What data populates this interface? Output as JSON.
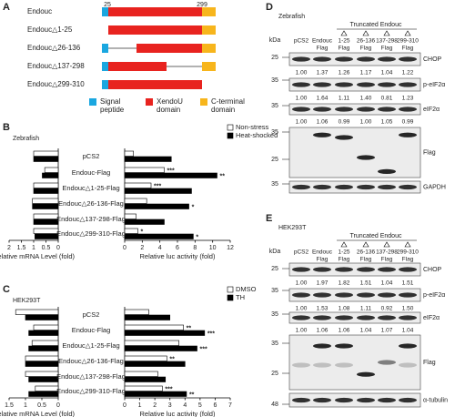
{
  "panel_a": {
    "label": "A",
    "positions": [
      "25",
      "299"
    ],
    "constructs": [
      "Endouc",
      "Endouc△1-25",
      "Endouc△26-136",
      "Endouc△137-298",
      "Endouc△299-310"
    ],
    "legend": [
      {
        "lines": [
          "Signal",
          "peptide"
        ],
        "color": "#1aa7e0"
      },
      {
        "lines": [
          "XendoU",
          "domain"
        ],
        "color": "#e8231f"
      },
      {
        "lines": [
          "C-terminal",
          "domain"
        ],
        "color": "#f7b51c"
      }
    ]
  },
  "panel_b": {
    "label": "B",
    "subtitle": "Zebrafish"
  },
  "panel_c": {
    "label": "C",
    "subtitle": "HEK293T"
  },
  "chart_data": [
    {
      "type": "hbar",
      "reversed": true,
      "xlabel": "Relative mRNA Level (fold)",
      "xlim": [
        0,
        2
      ],
      "xticks": [
        0,
        0.5,
        1,
        1.5,
        2
      ],
      "series": [
        {
          "color": "#ffffff",
          "values": [
            1,
            0.55,
            1,
            1.05,
            1,
            1
          ]
        },
        {
          "color": "#000000",
          "values": [
            1,
            0.65,
            1,
            1.05,
            1,
            0.95
          ]
        }
      ]
    },
    {
      "type": "hbar",
      "xlabel": "Relative luc activity (fold)",
      "xlim": [
        0,
        12
      ],
      "xticks": [
        0,
        2,
        4,
        6,
        8,
        10,
        12
      ],
      "categories": [
        "pCS2",
        "Endouc-Flag",
        "Endouc△1-25-Flag",
        "Endouc△26-136-Flag",
        "Endouc△137-298-Flag",
        "Endouc△299-310-Flag"
      ],
      "series": [
        {
          "name": "Non-stress",
          "color": "#ffffff",
          "values": [
            1,
            4.5,
            3,
            2.5,
            1.3,
            1.5
          ],
          "significance": [
            null,
            "***",
            "***",
            null,
            null,
            "*"
          ]
        },
        {
          "name": "Heat-shocked",
          "color": "#000000",
          "values": [
            5.3,
            10.5,
            7.6,
            7.3,
            4.5,
            7.8
          ],
          "significance": [
            null,
            "**",
            null,
            "*",
            null,
            "*"
          ]
        }
      ]
    },
    {
      "type": "hbar",
      "reversed": true,
      "xlabel": "Relative mRNA Level (fold)",
      "xlim": [
        0,
        1.5
      ],
      "xticks": [
        0,
        0.5,
        1,
        1.5
      ],
      "series": [
        {
          "color": "#ffffff",
          "values": [
            1.3,
            0.75,
            0.8,
            1,
            1,
            0.7
          ]
        },
        {
          "color": "#000000",
          "values": [
            1,
            0.9,
            0.9,
            1,
            0.9,
            0.9
          ]
        }
      ]
    },
    {
      "type": "hbar",
      "xlabel": "Relative luc activity (fold)",
      "xlim": [
        0,
        7
      ],
      "xticks": [
        0,
        1,
        2,
        3,
        4,
        5,
        6,
        7
      ],
      "categories": [
        "pCS2",
        "Endouc-Flag",
        "Endouc△1-25-Flag",
        "Endouc△26-136-Flag",
        "Endouc△137-298-Flag",
        "Endouc△299-310-Flag"
      ],
      "series": [
        {
          "name": "DMSO",
          "color": "#ffffff",
          "values": [
            1.6,
            3.9,
            3.6,
            2.8,
            2.2,
            2.5
          ],
          "significance": [
            null,
            "**",
            null,
            "**",
            null,
            "***"
          ]
        },
        {
          "name": "TH",
          "color": "#000000",
          "values": [
            3,
            5.3,
            4.8,
            4,
            2.7,
            4.1
          ],
          "significance": [
            null,
            "***",
            "***",
            null,
            null,
            "**"
          ]
        }
      ]
    }
  ],
  "panel_d": {
    "label": "D",
    "subtitle": "Zebrafish",
    "group_label": "Truncated Endouc",
    "kda": "kDa",
    "lanes": [
      [
        "pCS2"
      ],
      [
        "Endouc",
        "Flag"
      ],
      [
        "1-25",
        "Flag"
      ],
      [
        "26-136",
        "Flag"
      ],
      [
        "137-298",
        "Flag"
      ],
      [
        "299-310",
        "Flag"
      ]
    ],
    "blots": [
      {
        "name": "CHOP",
        "markers": [
          "25"
        ],
        "values": [
          "1.00",
          "1.37",
          "1.26",
          "1.17",
          "1.04",
          "1.22"
        ]
      },
      {
        "name": "p-eIF2α",
        "markers": [
          "35"
        ],
        "values": [
          "1.00",
          "1.64",
          "1.11",
          "1.40",
          "0.81",
          "1.23"
        ]
      },
      {
        "name": "eIF2α",
        "markers": [
          "35"
        ],
        "values": [
          "1.00",
          "1.06",
          "0.99",
          "1.00",
          "1.05",
          "0.99"
        ]
      },
      {
        "name": "Flag",
        "markers": [
          "35",
          "25"
        ]
      },
      {
        "name": "GAPDH",
        "markers": [
          "35"
        ]
      }
    ]
  },
  "panel_e": {
    "label": "E",
    "subtitle": "HEK293T",
    "group_label": "Truncated Endouc",
    "kda": "kDa",
    "lanes": [
      [
        "pCS2"
      ],
      [
        "Endouc",
        "Flag"
      ],
      [
        "1-25",
        "Flag"
      ],
      [
        "26-136",
        "Flag"
      ],
      [
        "137-298",
        "Flag"
      ],
      [
        "299-310",
        "Flag"
      ]
    ],
    "blots": [
      {
        "name": "CHOP",
        "markers": [
          "25"
        ],
        "values": [
          "1.00",
          "1.97",
          "1.82",
          "1.51",
          "1.04",
          "1.51"
        ]
      },
      {
        "name": "p-eIF2α",
        "markers": [
          "35"
        ],
        "values": [
          "1.00",
          "1.53",
          "1.08",
          "1.11",
          "0.92",
          "1.50"
        ]
      },
      {
        "name": "eIF2α",
        "markers": [
          "35"
        ],
        "values": [
          "1.00",
          "1.06",
          "1.06",
          "1.04",
          "1.07",
          "1.04"
        ]
      },
      {
        "name": "Flag",
        "markers": [
          "35",
          "25"
        ]
      },
      {
        "name": "α-tubulin",
        "markers": [
          "48"
        ]
      }
    ]
  }
}
